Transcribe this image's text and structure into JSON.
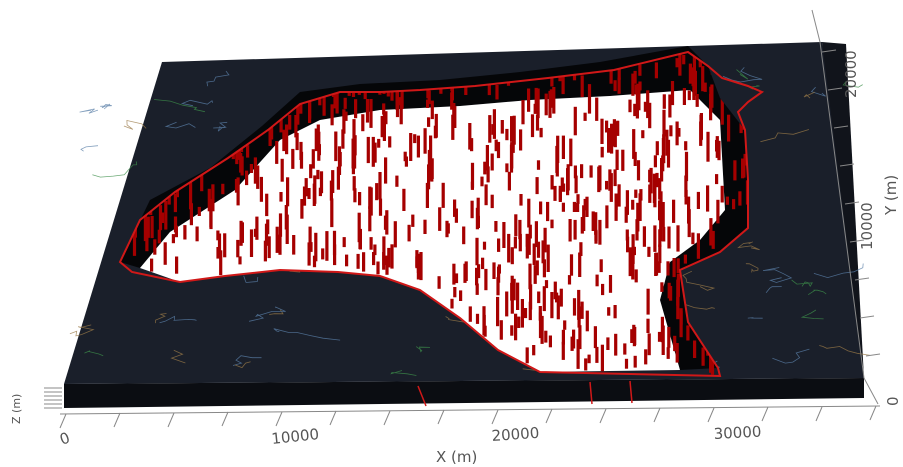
{
  "colors": {
    "map_surface": "#1a1f2a",
    "map_side": "#0b0d12",
    "basin_fill": "#ffffff",
    "boundary": "#d01818",
    "wells": "#a50000",
    "axis": "#555555",
    "contour_lines": "#5a7fa8",
    "river_lines": "#3d8f4a",
    "road_lines": "#9a7a48"
  },
  "x_axis": {
    "label": "X (m)",
    "ticks": [
      "0",
      "10000",
      "20000",
      "30000"
    ]
  },
  "y_axis": {
    "label": "Y (m)",
    "ticks": [
      "0",
      "10000",
      "20000"
    ]
  },
  "z_axis": {
    "label": "Z (m)"
  }
}
